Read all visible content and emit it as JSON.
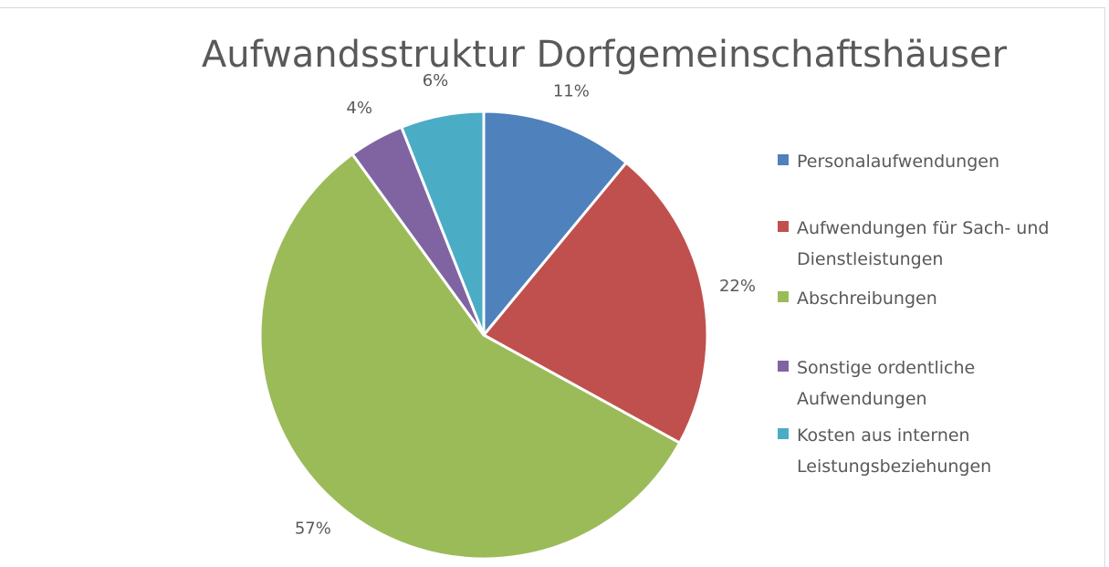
{
  "chart_data": {
    "type": "pie",
    "title": "Aufwandsstruktur Dorfgemeinschaftshäuser",
    "categories": [
      "Personalaufwendungen",
      "Aufwendungen für Sach- und Dienstleistungen",
      "Abschreibungen",
      "Sonstige ordentliche Aufwendungen",
      "Kosten aus internen Leistungsbeziehungen"
    ],
    "values": [
      11,
      22,
      57,
      4,
      6
    ],
    "value_labels": [
      "11%",
      "22%",
      "57%",
      "4%",
      "6%"
    ],
    "colors": [
      "#4f81bd",
      "#c0504d",
      "#9bbb59",
      "#8064a2",
      "#4bacc6"
    ],
    "legend": "right"
  }
}
